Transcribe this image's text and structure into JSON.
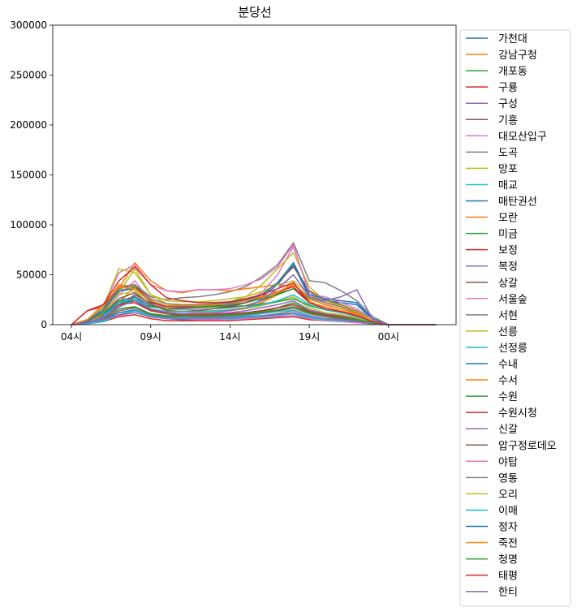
{
  "chart_data": {
    "type": "line",
    "title": "분당선",
    "xlabel": "",
    "ylabel": "",
    "x": [
      "04시",
      "05시",
      "06시",
      "07시",
      "08시",
      "09시",
      "10시",
      "11시",
      "12시",
      "13시",
      "14시",
      "15시",
      "16시",
      "17시",
      "18시",
      "19시",
      "20시",
      "21시",
      "22시",
      "23시",
      "00시",
      "01시",
      "02시",
      "03시"
    ],
    "xticks": [
      "04시",
      "09시",
      "14시",
      "19시",
      "00시"
    ],
    "ylim": [
      0,
      300000
    ],
    "yticks": [
      0,
      50000,
      100000,
      150000,
      200000,
      250000,
      300000
    ],
    "grid": false,
    "legend_position": "outside-right",
    "colors": [
      "#1f77b4",
      "#ff7f0e",
      "#2ca02c",
      "#d62728",
      "#9467bd",
      "#8c564b",
      "#e377c2",
      "#7f7f7f",
      "#bcbd22",
      "#17becf"
    ],
    "series": [
      {
        "name": "가천대",
        "values": [
          0,
          2000,
          5000,
          12000,
          15000,
          9000,
          6000,
          5000,
          5000,
          5000,
          5000,
          6000,
          7000,
          9000,
          11000,
          6000,
          5000,
          4000,
          3000,
          1500,
          0,
          0,
          0,
          0
        ]
      },
      {
        "name": "강남구청",
        "values": [
          0,
          3000,
          9000,
          22000,
          38000,
          25000,
          15000,
          13000,
          12000,
          13000,
          14000,
          17000,
          22000,
          30000,
          42000,
          24000,
          16000,
          13000,
          9000,
          3000,
          0,
          0,
          0,
          0
        ]
      },
      {
        "name": "개포동",
        "values": [
          0,
          2000,
          7000,
          18000,
          26000,
          15000,
          11000,
          9000,
          9000,
          9000,
          9000,
          10000,
          13000,
          17000,
          22000,
          14000,
          10000,
          8000,
          6000,
          2000,
          0,
          0,
          0,
          0
        ]
      },
      {
        "name": "구룡",
        "values": [
          0,
          1000,
          3000,
          8000,
          10000,
          6000,
          4000,
          4000,
          4000,
          4000,
          4000,
          5000,
          6000,
          7000,
          8000,
          5000,
          4000,
          3000,
          2000,
          1000,
          0,
          0,
          0,
          0
        ]
      },
      {
        "name": "구성",
        "values": [
          0,
          3000,
          8000,
          20000,
          28000,
          16000,
          12000,
          11000,
          11000,
          11000,
          12000,
          14000,
          17000,
          20000,
          24000,
          15000,
          11000,
          9000,
          6000,
          2000,
          0,
          0,
          0,
          0
        ]
      },
      {
        "name": "기흥",
        "values": [
          0,
          3000,
          10000,
          26000,
          32000,
          20000,
          16000,
          15000,
          15000,
          16000,
          17000,
          19000,
          24000,
          31000,
          36000,
          22000,
          16000,
          13000,
          9000,
          3000,
          0,
          0,
          0,
          0
        ]
      },
      {
        "name": "대모산입구",
        "values": [
          0,
          1000,
          4000,
          9000,
          12000,
          8000,
          6000,
          6000,
          5000,
          5000,
          5000,
          6000,
          7000,
          8000,
          9000,
          6000,
          4000,
          3000,
          2000,
          1000,
          0,
          0,
          0,
          0
        ]
      },
      {
        "name": "도곡",
        "values": [
          0,
          1000,
          4000,
          10000,
          14000,
          9000,
          7000,
          7000,
          7000,
          7000,
          7000,
          8000,
          9000,
          11000,
          14000,
          9000,
          6000,
          5000,
          3000,
          1000,
          0,
          0,
          0,
          0
        ]
      },
      {
        "name": "망포",
        "values": [
          0,
          3000,
          12000,
          30000,
          34000,
          20000,
          14000,
          13000,
          13000,
          13000,
          14000,
          16000,
          19000,
          23000,
          28000,
          17000,
          12000,
          10000,
          7000,
          2000,
          0,
          0,
          0,
          0
        ]
      },
      {
        "name": "매교",
        "values": [
          0,
          1000,
          4000,
          10000,
          12000,
          8000,
          6000,
          6000,
          6000,
          6000,
          6000,
          7000,
          8000,
          9000,
          11000,
          7000,
          5000,
          4000,
          3000,
          1000,
          0,
          0,
          0,
          0
        ]
      },
      {
        "name": "매탄권선",
        "values": [
          0,
          3000,
          9000,
          22000,
          24000,
          14000,
          11000,
          10000,
          10000,
          10000,
          11000,
          12000,
          14000,
          17000,
          20000,
          13000,
          9000,
          8000,
          5000,
          2000,
          0,
          0,
          0,
          0
        ]
      },
      {
        "name": "모란",
        "values": [
          0,
          5000,
          18000,
          40000,
          38000,
          22000,
          18000,
          18000,
          19000,
          20000,
          22000,
          24000,
          27000,
          32000,
          40000,
          28000,
          22000,
          18000,
          12000,
          4000,
          0,
          0,
          0,
          0
        ]
      },
      {
        "name": "미금",
        "values": [
          0,
          4000,
          14000,
          34000,
          38000,
          24000,
          19000,
          18000,
          18000,
          19000,
          20000,
          22000,
          26000,
          30000,
          36000,
          26000,
          20000,
          16000,
          11000,
          4000,
          0,
          0,
          0,
          0
        ]
      },
      {
        "name": "보정",
        "values": [
          0,
          3000,
          9000,
          20000,
          22000,
          14000,
          11000,
          10000,
          10000,
          10000,
          11000,
          12000,
          14000,
          17000,
          20000,
          13000,
          10000,
          8000,
          5000,
          2000,
          0,
          0,
          0,
          0
        ]
      },
      {
        "name": "복정",
        "values": [
          0,
          2000,
          6000,
          14000,
          17000,
          11000,
          9000,
          8000,
          8000,
          8000,
          9000,
          10000,
          12000,
          14000,
          17000,
          11000,
          8000,
          6000,
          4000,
          1000,
          0,
          0,
          0,
          0
        ]
      },
      {
        "name": "상갈",
        "values": [
          0,
          2000,
          6000,
          14000,
          17000,
          10000,
          8000,
          8000,
          8000,
          8000,
          9000,
          10000,
          12000,
          14000,
          17000,
          11000,
          8000,
          6000,
          4000,
          1000,
          0,
          0,
          0,
          0
        ]
      },
      {
        "name": "서울숲",
        "values": [
          0,
          2000,
          8000,
          30000,
          44000,
          23000,
          16000,
          15000,
          15000,
          16000,
          18000,
          22000,
          32000,
          50000,
          78000,
          33000,
          22000,
          18000,
          12000,
          3000,
          0,
          0,
          0,
          0
        ]
      },
      {
        "name": "서현",
        "values": [
          0,
          5000,
          18000,
          38000,
          40000,
          28000,
          25000,
          27000,
          28000,
          30000,
          33000,
          38000,
          48000,
          60000,
          82000,
          44000,
          42000,
          34000,
          24000,
          8000,
          0,
          0,
          0,
          0
        ]
      },
      {
        "name": "선릉",
        "values": [
          0,
          2000,
          10000,
          32000,
          56000,
          30000,
          21000,
          20000,
          20000,
          21000,
          23000,
          28000,
          40000,
          56000,
          72000,
          38000,
          24000,
          19000,
          13000,
          4000,
          0,
          0,
          0,
          0
        ]
      },
      {
        "name": "선정릉",
        "values": [
          0,
          1000,
          3000,
          10000,
          14000,
          9000,
          7000,
          7000,
          7000,
          7000,
          8000,
          9000,
          11000,
          13000,
          15000,
          9000,
          6000,
          5000,
          3000,
          1000,
          0,
          0,
          0,
          0
        ]
      },
      {
        "name": "수내",
        "values": [
          0,
          3000,
          10000,
          24000,
          28000,
          19000,
          16000,
          17000,
          17000,
          18000,
          19000,
          22000,
          28000,
          40000,
          60000,
          28000,
          24000,
          22000,
          20000,
          5000,
          0,
          0,
          0,
          0
        ]
      },
      {
        "name": "수서",
        "values": [
          0,
          2000,
          11000,
          36000,
          62000,
          44000,
          34000,
          32000,
          35000,
          35000,
          34000,
          36000,
          38000,
          40000,
          38000,
          22000,
          18000,
          14000,
          10000,
          4000,
          0,
          0,
          0,
          0
        ]
      },
      {
        "name": "수원",
        "values": [
          0,
          4000,
          12000,
          24000,
          24000,
          18000,
          16000,
          16000,
          17000,
          18000,
          18000,
          19000,
          21000,
          23000,
          26000,
          19000,
          15000,
          12000,
          9000,
          3000,
          0,
          0,
          0,
          0
        ]
      },
      {
        "name": "수원시청",
        "values": [
          0,
          14000,
          18000,
          36000,
          40000,
          22000,
          18000,
          18000,
          19000,
          20000,
          21000,
          24000,
          28000,
          33000,
          38000,
          22000,
          16000,
          12000,
          9000,
          3000,
          0,
          0,
          0,
          0
        ]
      },
      {
        "name": "신갈",
        "values": [
          0,
          2000,
          5000,
          10000,
          12000,
          8000,
          6000,
          6000,
          6000,
          6000,
          7000,
          8000,
          9000,
          10000,
          12000,
          8000,
          6000,
          5000,
          3000,
          1000,
          0,
          0,
          0,
          0
        ]
      },
      {
        "name": "압구정로데오",
        "values": [
          0,
          2000,
          7000,
          18000,
          30000,
          21000,
          14000,
          13000,
          14000,
          16000,
          18000,
          22000,
          30000,
          42000,
          58000,
          34000,
          25000,
          20000,
          14000,
          4000,
          0,
          0,
          0,
          0
        ]
      },
      {
        "name": "야탑",
        "values": [
          0,
          5000,
          18000,
          52000,
          60000,
          40000,
          34000,
          33000,
          35000,
          35000,
          36000,
          40000,
          46000,
          58000,
          80000,
          30000,
          28000,
          22000,
          16000,
          5000,
          0,
          0,
          0,
          0
        ]
      },
      {
        "name": "영통",
        "values": [
          0,
          4000,
          16000,
          36000,
          40000,
          26000,
          21000,
          20000,
          20000,
          21000,
          22000,
          24000,
          28000,
          33000,
          40000,
          28000,
          22000,
          18000,
          12000,
          4000,
          0,
          0,
          0,
          0
        ]
      },
      {
        "name": "오리",
        "values": [
          0,
          5000,
          18000,
          56000,
          52000,
          30000,
          24000,
          23000,
          23000,
          24000,
          26000,
          28000,
          33000,
          40000,
          44000,
          30000,
          24000,
          19000,
          13000,
          4000,
          0,
          0,
          0,
          0
        ]
      },
      {
        "name": "이매",
        "values": [
          0,
          2000,
          8000,
          22000,
          26000,
          16000,
          13000,
          13000,
          13000,
          14000,
          15000,
          17000,
          20000,
          24000,
          30000,
          20000,
          15000,
          12000,
          8000,
          3000,
          0,
          0,
          0,
          0
        ]
      },
      {
        "name": "정자",
        "values": [
          0,
          3000,
          14000,
          34000,
          36000,
          23000,
          19000,
          19000,
          19000,
          20000,
          22000,
          25000,
          30000,
          42000,
          62000,
          30000,
          26000,
          24000,
          22000,
          6000,
          0,
          0,
          0,
          0
        ]
      },
      {
        "name": "죽전",
        "values": [
          0,
          5000,
          20000,
          38000,
          36000,
          24000,
          19000,
          19000,
          19000,
          20000,
          21000,
          24000,
          28000,
          33000,
          40000,
          27000,
          20000,
          16000,
          11000,
          3000,
          0,
          0,
          0,
          0
        ]
      },
      {
        "name": "청명",
        "values": [
          0,
          2000,
          7000,
          16000,
          18000,
          11000,
          9000,
          9000,
          9000,
          9000,
          10000,
          11000,
          13000,
          15000,
          18000,
          12000,
          9000,
          7000,
          5000,
          2000,
          0,
          0,
          0,
          0
        ]
      },
      {
        "name": "태평",
        "values": [
          0,
          14000,
          20000,
          44000,
          58000,
          40000,
          27000,
          24000,
          22000,
          22000,
          23000,
          26000,
          30000,
          36000,
          42000,
          22000,
          16000,
          13000,
          9000,
          3000,
          0,
          0,
          0,
          0
        ]
      },
      {
        "name": "한티",
        "values": [
          0,
          2000,
          7000,
          18000,
          24000,
          16000,
          12000,
          11000,
          11000,
          12000,
          14000,
          17000,
          25000,
          36000,
          50000,
          28000,
          24000,
          28000,
          35000,
          5000,
          0,
          0,
          0,
          0
        ]
      }
    ]
  }
}
